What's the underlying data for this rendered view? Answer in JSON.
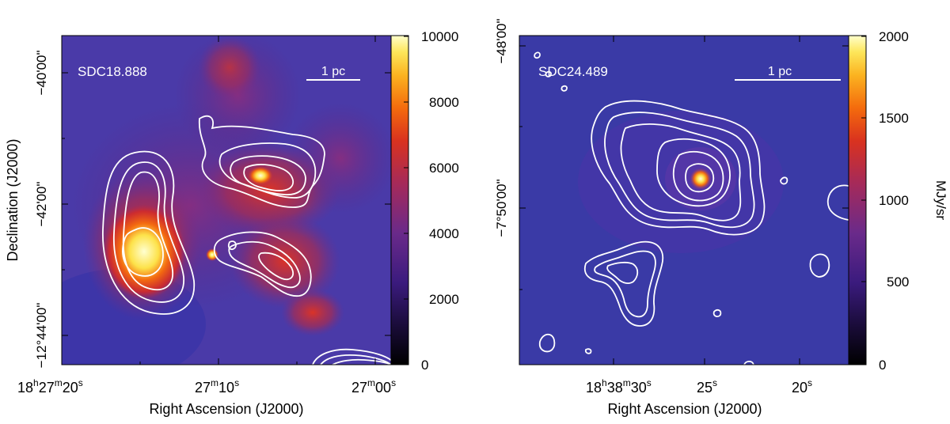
{
  "panels": [
    {
      "label": "SDC18.888",
      "scalebar": "1 pc",
      "dec_ticks": [
        "−40'00\"",
        "−42'00\"",
        "−12°44'00\""
      ],
      "ra_ticks": [
        "18h27m20s",
        "27m10s",
        "27m00s"
      ],
      "ra_tick_parts": [
        {
          "h": "18",
          "hu": "h",
          "m": "27",
          "mu": "m",
          "s": "20",
          "su": "s"
        },
        {
          "m": "27",
          "mu": "m",
          "s": "10",
          "su": "s"
        },
        {
          "m": "27",
          "mu": "m",
          "s": "00",
          "su": "s"
        }
      ],
      "xlabel": "Right Ascension (J2000)",
      "ylabel": "Declination (J2000)",
      "colorbar_ticks": [
        "10000",
        "8000",
        "6000",
        "4000",
        "2000",
        "0"
      ],
      "colorbar_range": [
        0,
        10000
      ]
    },
    {
      "label": "SDC24.489",
      "scalebar": "1 pc",
      "dec_ticks": [
        "−48'00\"",
        "−7°50'00\""
      ],
      "ra_ticks": [
        "18h38m30s",
        "25s",
        "20s"
      ],
      "ra_tick_parts": [
        {
          "h": "18",
          "hu": "h",
          "m": "38",
          "mu": "m",
          "s": "30",
          "su": "s"
        },
        {
          "s": "25",
          "su": "s"
        },
        {
          "s": "20",
          "su": "s"
        }
      ],
      "xlabel": "Right Ascension (J2000)",
      "colorbar_ticks": [
        "2000",
        "1500",
        "1000",
        "500",
        "0"
      ],
      "colorbar_range": [
        0,
        2000
      ],
      "colorbar_unit": "MJy/sr"
    }
  ],
  "colormap": [
    "#000000",
    "#1a0c3a",
    "#3b1b7e",
    "#6a2a8a",
    "#a52a5a",
    "#d9321f",
    "#f46b0d",
    "#fbb320",
    "#fde65a",
    "#ffffcc"
  ]
}
